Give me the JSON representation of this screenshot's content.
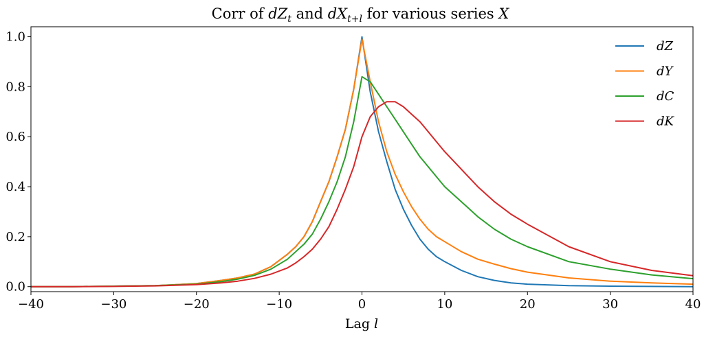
{
  "chart_data": {
    "type": "line",
    "title": {
      "prefix": "Corr of ",
      "var1": "dZ",
      "sub1": "t",
      "mid": " and ",
      "var2": "dX",
      "sub2": "t+l",
      "suffix": " for various series ",
      "var3": "X"
    },
    "xlabel": {
      "text": "Lag ",
      "var": "l"
    },
    "ylabel": "",
    "xlim": [
      -40,
      40
    ],
    "ylim": [
      -0.02,
      1.04
    ],
    "xticks": [
      -40,
      -30,
      -20,
      -10,
      0,
      10,
      20,
      30,
      40
    ],
    "xtick_labels": [
      "−40",
      "−30",
      "−20",
      "−10",
      "0",
      "10",
      "20",
      "30",
      "40"
    ],
    "yticks": [
      0.0,
      0.2,
      0.4,
      0.6,
      0.8,
      1.0
    ],
    "ytick_labels": [
      "0.0",
      "0.2",
      "0.4",
      "0.6",
      "0.8",
      "1.0"
    ],
    "grid": false,
    "legend_position": "top-right",
    "series": [
      {
        "name": "dZ",
        "color": "#1f77b4",
        "x": [
          -40,
          -35,
          -30,
          -25,
          -20,
          -17,
          -15,
          -13,
          -11,
          -9,
          -8,
          -7,
          -6,
          -5,
          -4,
          -3,
          -2,
          -1,
          0,
          1,
          2,
          3,
          4,
          5,
          6,
          7,
          8,
          9,
          10,
          12,
          14,
          16,
          18,
          20,
          25,
          30,
          35,
          40
        ],
        "y": [
          0.0,
          0.0,
          0.002,
          0.004,
          0.012,
          0.025,
          0.035,
          0.05,
          0.08,
          0.13,
          0.16,
          0.2,
          0.26,
          0.34,
          0.42,
          0.52,
          0.63,
          0.79,
          1.0,
          0.78,
          0.62,
          0.5,
          0.39,
          0.31,
          0.245,
          0.19,
          0.15,
          0.12,
          0.1,
          0.065,
          0.04,
          0.025,
          0.015,
          0.01,
          0.004,
          0.002,
          0.001,
          0.0
        ]
      },
      {
        "name": "dY",
        "color": "#ff7f0e",
        "x": [
          -40,
          -35,
          -30,
          -25,
          -20,
          -17,
          -15,
          -13,
          -11,
          -9,
          -8,
          -7,
          -6,
          -5,
          -4,
          -3,
          -2,
          -1,
          0,
          1,
          2,
          3,
          4,
          5,
          6,
          7,
          8,
          9,
          10,
          12,
          14,
          16,
          18,
          20,
          25,
          30,
          35,
          40
        ],
        "y": [
          0.0,
          0.0,
          0.002,
          0.004,
          0.012,
          0.025,
          0.035,
          0.05,
          0.08,
          0.13,
          0.16,
          0.2,
          0.26,
          0.34,
          0.42,
          0.52,
          0.63,
          0.79,
          0.99,
          0.82,
          0.66,
          0.54,
          0.45,
          0.38,
          0.32,
          0.27,
          0.23,
          0.2,
          0.18,
          0.14,
          0.11,
          0.09,
          0.072,
          0.058,
          0.035,
          0.022,
          0.015,
          0.01
        ]
      },
      {
        "name": "dC",
        "color": "#2ca02c",
        "x": [
          -40,
          -35,
          -30,
          -25,
          -20,
          -17,
          -15,
          -13,
          -11,
          -9,
          -8,
          -7,
          -6,
          -5,
          -4,
          -3,
          -2,
          -1,
          0,
          1,
          2,
          3,
          4,
          5,
          6,
          7,
          8,
          9,
          10,
          12,
          14,
          16,
          18,
          20,
          25,
          30,
          35,
          40
        ],
        "y": [
          0.0,
          0.0,
          0.002,
          0.004,
          0.01,
          0.02,
          0.03,
          0.045,
          0.07,
          0.11,
          0.14,
          0.17,
          0.21,
          0.27,
          0.34,
          0.42,
          0.52,
          0.66,
          0.84,
          0.82,
          0.77,
          0.72,
          0.67,
          0.62,
          0.57,
          0.52,
          0.48,
          0.44,
          0.4,
          0.34,
          0.28,
          0.23,
          0.19,
          0.16,
          0.1,
          0.07,
          0.047,
          0.032
        ]
      },
      {
        "name": "dK",
        "color": "#d62728",
        "x": [
          -40,
          -35,
          -30,
          -25,
          -20,
          -17,
          -15,
          -13,
          -11,
          -9,
          -8,
          -7,
          -6,
          -5,
          -4,
          -3,
          -2,
          -1,
          0,
          1,
          2,
          3,
          4,
          5,
          6,
          7,
          8,
          9,
          10,
          12,
          14,
          16,
          18,
          20,
          25,
          30,
          35,
          40
        ],
        "y": [
          0.0,
          0.0,
          0.001,
          0.003,
          0.008,
          0.015,
          0.022,
          0.033,
          0.05,
          0.075,
          0.095,
          0.12,
          0.15,
          0.19,
          0.24,
          0.31,
          0.39,
          0.48,
          0.6,
          0.68,
          0.72,
          0.74,
          0.74,
          0.72,
          0.69,
          0.66,
          0.62,
          0.58,
          0.54,
          0.47,
          0.4,
          0.34,
          0.29,
          0.25,
          0.16,
          0.1,
          0.065,
          0.044
        ]
      }
    ]
  }
}
